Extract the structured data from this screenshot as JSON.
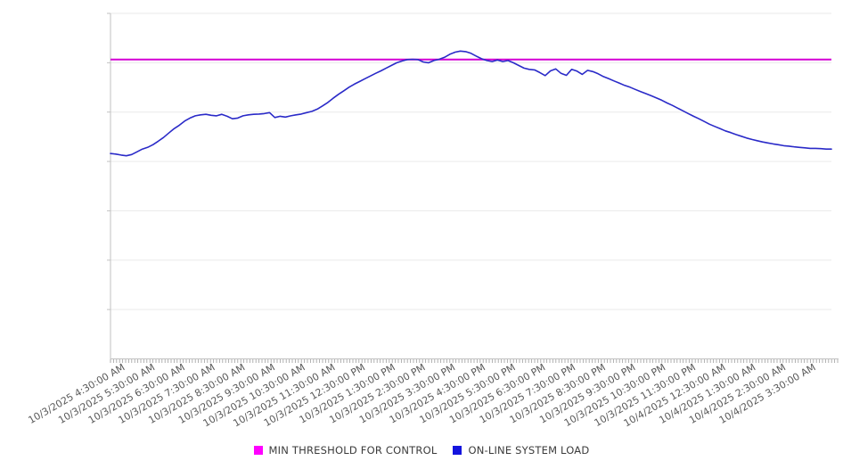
{
  "chart_data": {
    "type": "line",
    "title": "",
    "grid": "horizontal",
    "legend_position": "bottom-center",
    "x_axis": {
      "tick_labels": [
        "10/3/2025 4:30:00 AM",
        "10/3/2025 5:30:00 AM",
        "10/3/2025 6:30:00 AM",
        "10/3/2025 7:30:00 AM",
        "10/3/2025 8:30:00 AM",
        "10/3/2025 9:30:00 AM",
        "10/3/2025 10:30:00 AM",
        "10/3/2025 11:30:00 AM",
        "10/3/2025 12:30:00 PM",
        "10/3/2025 1:30:00 PM",
        "10/3/2025 2:30:00 PM",
        "10/3/2025 3:30:00 PM",
        "10/3/2025 4:30:00 PM",
        "10/3/2025 5:30:00 PM",
        "10/3/2025 6:30:00 PM",
        "10/3/2025 7:30:00 PM",
        "10/3/2025 8:30:00 PM",
        "10/3/2025 9:30:00 PM",
        "10/3/2025 10:30:00 PM",
        "10/3/2025 11:30:00 PM",
        "10/4/2025 12:30:00 AM",
        "10/4/2025 1:30:00 AM",
        "10/4/2025 2:30:00 AM",
        "10/4/2025 3:30:00 AM"
      ],
      "label_rotation_deg": -30,
      "hours_span": 24,
      "first_tick_hour_offset": 0.5
    },
    "y_axis": {
      "min": 0,
      "max": 140,
      "gridline_step": 20,
      "tick_labels_visible": false
    },
    "series": [
      {
        "name": "MIN THRESHOLD FOR CONTROL",
        "type": "threshold",
        "color": "#D400D4",
        "value": 121.3
      },
      {
        "name": "ON-LINE SYSTEM LOAD",
        "type": "line",
        "color": "#2A2AC8",
        "time_start": "10/3/2025 4:00:00 AM",
        "time_end": "10/4/2025 4:00:00 AM",
        "values": [
          83.2,
          83.0,
          82.6,
          82.3,
          82.8,
          83.9,
          85.0,
          85.7,
          86.8,
          88.2,
          89.7,
          91.5,
          93.3,
          94.7,
          96.4,
          97.6,
          98.5,
          98.9,
          99.1,
          98.7,
          98.5,
          99.1,
          98.3,
          97.3,
          97.6,
          98.5,
          98.9,
          99.1,
          99.2,
          99.4,
          99.8,
          97.8,
          98.3,
          98.0,
          98.5,
          98.9,
          99.2,
          99.8,
          100.3,
          101.2,
          102.5,
          103.9,
          105.6,
          107.2,
          108.6,
          110.1,
          111.3,
          112.4,
          113.5,
          114.6,
          115.7,
          116.7,
          117.8,
          118.9,
          120.0,
          120.7,
          121.3,
          121.4,
          121.3,
          120.3,
          120.0,
          120.9,
          121.4,
          122.2,
          123.4,
          124.3,
          124.7,
          124.5,
          123.8,
          122.7,
          121.6,
          120.9,
          120.5,
          121.1,
          120.5,
          120.9,
          120.0,
          118.9,
          117.8,
          117.3,
          117.1,
          116.0,
          114.8,
          116.7,
          117.5,
          115.7,
          114.9,
          117.3,
          116.6,
          115.3,
          116.9,
          116.4,
          115.5,
          114.4,
          113.5,
          112.6,
          111.7,
          110.8,
          110.1,
          109.2,
          108.3,
          107.5,
          106.6,
          105.7,
          104.8,
          103.7,
          102.7,
          101.6,
          100.5,
          99.4,
          98.3,
          97.3,
          96.2,
          95.1,
          94.2,
          93.3,
          92.4,
          91.7,
          90.9,
          90.2,
          89.5,
          88.9,
          88.4,
          87.9,
          87.5,
          87.1,
          86.8,
          86.4,
          86.2,
          85.9,
          85.7,
          85.5,
          85.3,
          85.3,
          85.2,
          85.0,
          85.0
        ]
      }
    ]
  },
  "legend": {
    "items": [
      {
        "label": "MIN THRESHOLD FOR CONTROL",
        "swatch_color": "#FF00FF"
      },
      {
        "label": "ON-LINE SYSTEM LOAD",
        "swatch_color": "#1414DE"
      }
    ]
  },
  "colors": {
    "gridline": "#EAEAEA",
    "axis": "#C2C2C2",
    "minor_tick": "#A8A8A8",
    "tick_label": "#595959"
  }
}
